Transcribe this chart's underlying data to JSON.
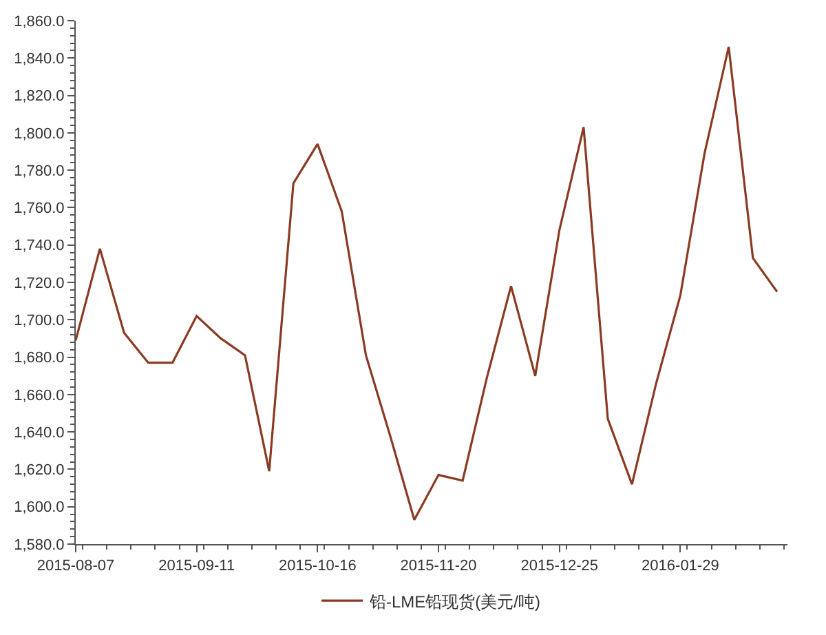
{
  "chart_data": {
    "type": "line",
    "x": [
      "2015-08-07",
      "2015-08-14",
      "2015-08-21",
      "2015-08-28",
      "2015-09-04",
      "2015-09-11",
      "2015-09-18",
      "2015-09-25",
      "2015-10-02",
      "2015-10-09",
      "2015-10-16",
      "2015-10-23",
      "2015-10-30",
      "2015-11-06",
      "2015-11-13",
      "2015-11-20",
      "2015-11-27",
      "2015-12-04",
      "2015-12-11",
      "2015-12-18",
      "2015-12-25",
      "2016-01-01",
      "2016-01-08",
      "2016-01-15",
      "2016-01-22",
      "2016-01-29",
      "2016-02-05",
      "2016-02-12",
      "2016-02-19",
      "2016-02-26"
    ],
    "series": [
      {
        "name": "铅-LME铅现货(美元/吨)",
        "color": "#8b3a22",
        "values": [
          1689,
          1738,
          1693,
          1677,
          1677,
          1702,
          1690,
          1681,
          1619,
          1773,
          1794,
          1758,
          1681,
          1638,
          1593,
          1617,
          1614,
          1669,
          1718,
          1670,
          1748,
          1803,
          1647,
          1612,
          1666,
          1713,
          1789,
          1846,
          1733,
          1715
        ]
      }
    ],
    "xlim": [
      "2015-08-07",
      "2016-02-29"
    ],
    "xticks": [
      {
        "value": "2015-08-07",
        "label": "2015-08-07"
      },
      {
        "value": "2015-09-11",
        "label": "2015-09-11"
      },
      {
        "value": "2015-10-16",
        "label": "2015-10-16"
      },
      {
        "value": "2015-11-20",
        "label": "2015-11-20"
      },
      {
        "value": "2015-12-25",
        "label": "2015-12-25"
      },
      {
        "value": "2016-01-29",
        "label": "2016-01-29"
      }
    ],
    "ylim": [
      1580,
      1860
    ],
    "yticks": [
      {
        "value": 1580,
        "label": "1,580.0"
      },
      {
        "value": 1600,
        "label": "1,600.0"
      },
      {
        "value": 1620,
        "label": "1,620.0"
      },
      {
        "value": 1640,
        "label": "1,640.0"
      },
      {
        "value": 1660,
        "label": "1,660.0"
      },
      {
        "value": 1680,
        "label": "1,680.0"
      },
      {
        "value": 1700,
        "label": "1,700.0"
      },
      {
        "value": 1720,
        "label": "1,720.0"
      },
      {
        "value": 1740,
        "label": "1,740.0"
      },
      {
        "value": 1760,
        "label": "1,760.0"
      },
      {
        "value": 1780,
        "label": "1,780.0"
      },
      {
        "value": 1800,
        "label": "1,800.0"
      },
      {
        "value": 1820,
        "label": "1,820.0"
      },
      {
        "value": 1840,
        "label": "1,840.0"
      },
      {
        "value": 1860,
        "label": "1,860.0"
      }
    ],
    "legend": "bottom",
    "marker": "none",
    "line_style": "solid"
  }
}
